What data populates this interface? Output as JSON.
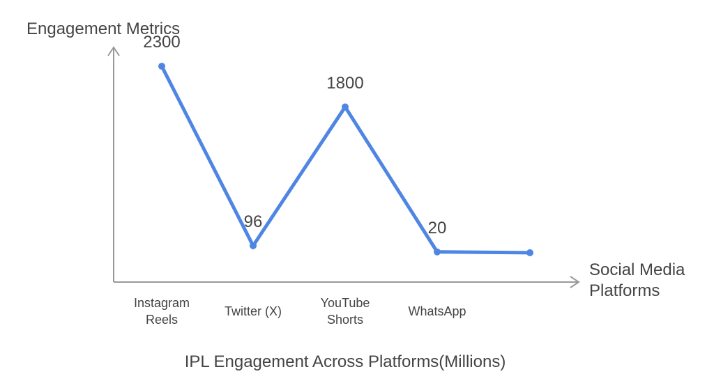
{
  "chart_data": {
    "type": "line",
    "title": "IPL Engagement Across Platforms(Millions)",
    "ylabel": "Engagement Metrics",
    "xlabel": "Social Media\nPlatforms",
    "categories": [
      "Instagram\nReels",
      "Twitter (X)",
      "YouTube\nShorts",
      "WhatsApp",
      ""
    ],
    "series": [
      {
        "values": [
          2300,
          96,
          1800,
          20,
          10
        ]
      }
    ],
    "data_labels": [
      "2300",
      "96",
      "1800",
      "20",
      ""
    ],
    "ylim": [
      -350,
      2600
    ],
    "grid": false,
    "colors": {
      "line": "#4f86e3",
      "axis": "#999999",
      "text": "#444444"
    }
  }
}
